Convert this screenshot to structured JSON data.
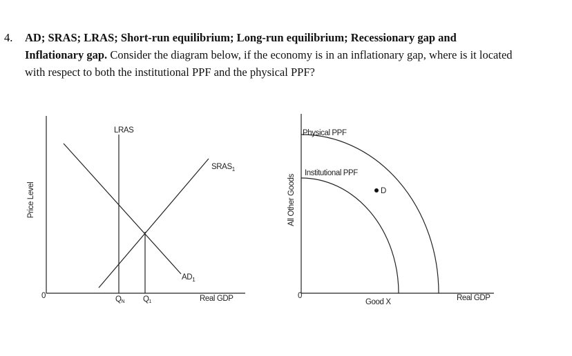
{
  "question": {
    "number": "4.",
    "heading": "AD; SRAS; LRAS; Short-run equilibrium; Long-run equilibrium; Recessionary gap and Inflationary gap.",
    "text": "Consider the diagram below, if the economy is in an inflationary gap, where is it located with respect to both the institutional PPF and the physical PPF?"
  },
  "left_diagram": {
    "y_label": "Price Level",
    "x_label": "Real GDP",
    "origin": "0",
    "lras": "LRAS",
    "sras": {
      "base": "SRAS",
      "sub": "1"
    },
    "ad": {
      "base": "AD",
      "sub": "1"
    },
    "qn": {
      "base": "Q",
      "sub": "N"
    },
    "q1": {
      "base": "Q",
      "sub": "1"
    }
  },
  "right_diagram": {
    "y_label": "All Other Goods",
    "x_label": "Real GDP",
    "origin": "0",
    "physical": "Physical PPF",
    "institutional": "Institutional PPF",
    "point": "D",
    "good_x": "Good X"
  }
}
